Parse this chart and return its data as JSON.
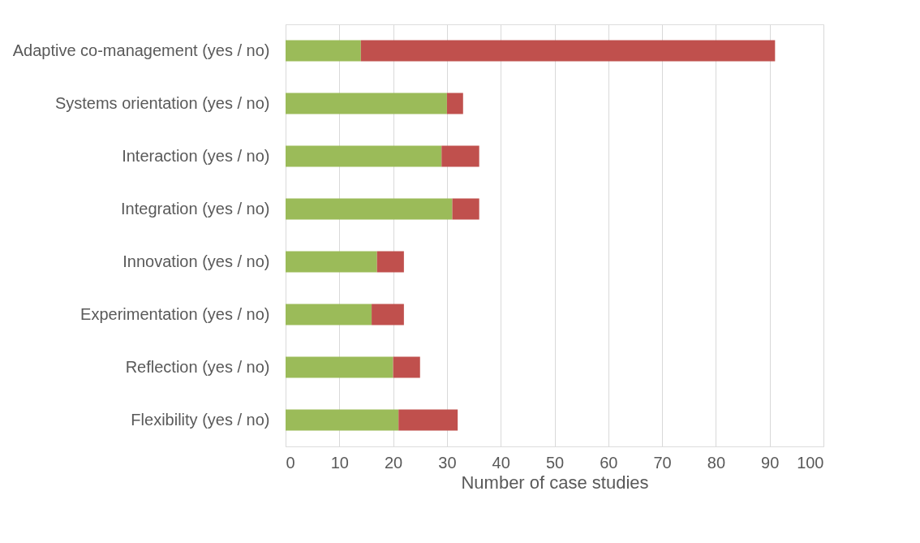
{
  "chart_data": {
    "type": "bar",
    "orientation": "horizontal",
    "stacked": true,
    "xlabel": "Number of case studies",
    "categories": [
      "Adaptive co-management (yes / no)",
      "Systems orientation (yes / no)",
      "Interaction (yes / no)",
      "Integration (yes / no)",
      "Innovation (yes / no)",
      "Experimentation (yes / no)",
      "Reflection (yes / no)",
      "Flexibility (yes / no)"
    ],
    "series": [
      {
        "color": "#9bbb59",
        "values": [
          14,
          30,
          29,
          31,
          17,
          16,
          20,
          21
        ]
      },
      {
        "color": "#c0504d",
        "values": [
          77,
          3,
          7,
          5,
          5,
          6,
          5,
          11
        ]
      }
    ],
    "xlim": [
      0,
      100
    ],
    "xticks": [
      0,
      10,
      20,
      30,
      40,
      50,
      60,
      70,
      80,
      90,
      100
    ],
    "grid": "x",
    "legend": false
  }
}
